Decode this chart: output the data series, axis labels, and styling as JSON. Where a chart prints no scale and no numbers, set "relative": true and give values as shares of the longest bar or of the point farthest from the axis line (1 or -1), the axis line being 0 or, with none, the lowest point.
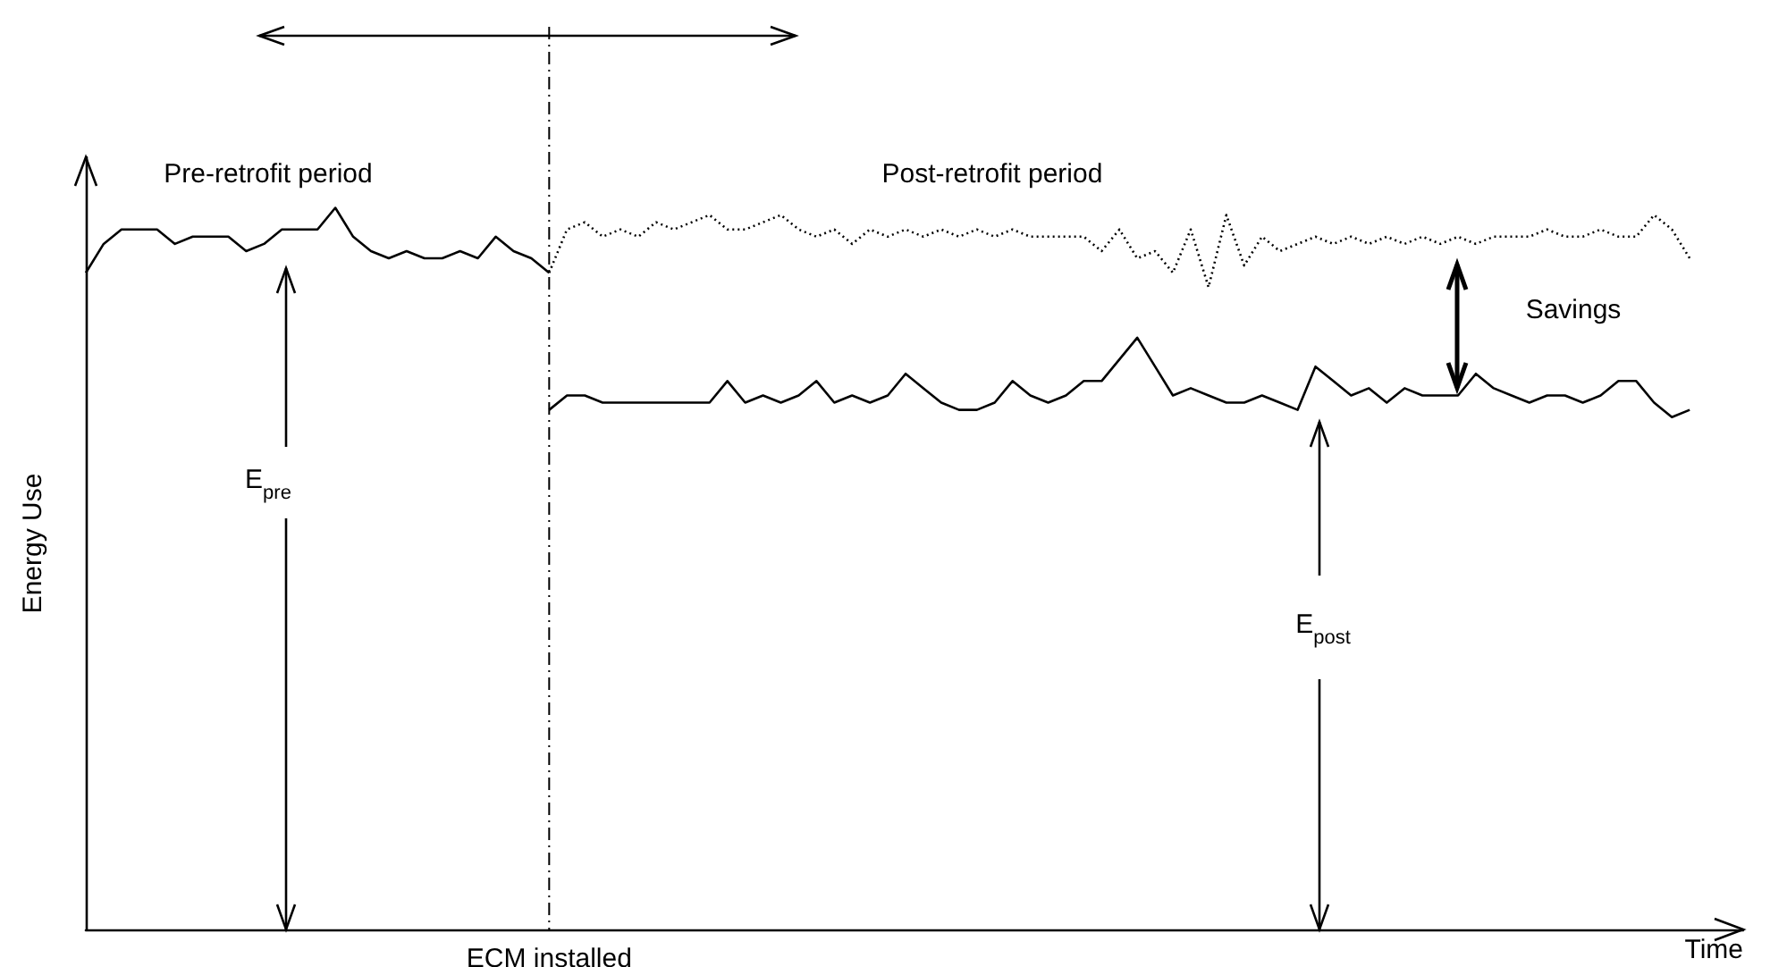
{
  "chart_data": {
    "type": "line",
    "relative": true,
    "xlabel": "Time",
    "ylabel": "Energy Use",
    "marker": "none",
    "categories": [
      null,
      null,
      null,
      null,
      null,
      null,
      null,
      null,
      null,
      null,
      null,
      null,
      null,
      null,
      null,
      null,
      null,
      null,
      null,
      null,
      null,
      null,
      null,
      null,
      null,
      null,
      null,
      null,
      null,
      null,
      null,
      null,
      null,
      null,
      null,
      null,
      null,
      null,
      null,
      null,
      null,
      null,
      null,
      null,
      null,
      null,
      null,
      null,
      null,
      null,
      null,
      null,
      null,
      null,
      null,
      null,
      null,
      null,
      null,
      null,
      null,
      null,
      null,
      null,
      null,
      null,
      null,
      null,
      null,
      null,
      null,
      null,
      null,
      null,
      null,
      null,
      null,
      null,
      null,
      null,
      null,
      null,
      null,
      null,
      null,
      null,
      null,
      null,
      null,
      null,
      null,
      null,
      null,
      null
    ],
    "series": [
      {
        "color": "#000000",
        "line_style": "solid",
        "values": [
          0.91,
          0.95,
          0.97,
          0.97,
          0.97,
          0.95,
          0.96,
          0.96,
          0.96,
          0.94,
          0.95,
          0.97,
          0.97,
          0.97,
          1.0,
          0.96,
          0.94,
          0.93,
          0.94,
          0.93,
          0.93,
          0.94,
          0.93,
          0.96,
          0.94,
          0.93,
          0.91,
          null,
          null,
          null,
          null,
          null,
          null,
          null,
          null,
          null,
          null,
          null,
          null,
          null,
          null,
          null,
          null,
          null,
          null,
          null,
          null,
          null,
          null,
          null,
          null,
          null,
          null,
          null,
          null,
          null,
          null,
          null,
          null,
          null,
          null,
          null,
          null,
          null,
          null,
          null,
          null,
          null,
          null,
          null,
          null,
          null,
          null,
          null,
          null,
          null,
          null,
          null,
          null,
          null,
          null,
          null,
          null,
          null,
          null,
          null,
          null,
          null,
          null,
          null,
          null,
          null,
          null,
          null
        ]
      },
      {
        "color": "#000000",
        "line_style": "dotted",
        "values": [
          null,
          null,
          null,
          null,
          null,
          null,
          null,
          null,
          null,
          null,
          null,
          null,
          null,
          null,
          null,
          null,
          null,
          null,
          null,
          null,
          null,
          null,
          null,
          null,
          null,
          null,
          0.91,
          0.97,
          0.98,
          0.96,
          0.97,
          0.96,
          0.98,
          0.97,
          0.98,
          0.99,
          0.97,
          0.97,
          0.98,
          0.99,
          0.97,
          0.96,
          0.97,
          0.95,
          0.97,
          0.96,
          0.97,
          0.96,
          0.97,
          0.96,
          0.97,
          0.96,
          0.97,
          0.96,
          0.96,
          0.96,
          0.96,
          0.94,
          0.97,
          0.93,
          0.94,
          0.91,
          0.97,
          0.89,
          0.99,
          0.92,
          0.96,
          0.94,
          0.95,
          0.96,
          0.95,
          0.96,
          0.95,
          0.96,
          0.95,
          0.96,
          0.95,
          0.96,
          0.95,
          0.96,
          0.96,
          0.96,
          0.97,
          0.96,
          0.96,
          0.97,
          0.96,
          0.96,
          0.99,
          0.97,
          0.93,
          null,
          null,
          null
        ]
      },
      {
        "color": "#000000",
        "line_style": "solid",
        "values": [
          null,
          null,
          null,
          null,
          null,
          null,
          null,
          null,
          null,
          null,
          null,
          null,
          null,
          null,
          null,
          null,
          null,
          null,
          null,
          null,
          null,
          null,
          null,
          null,
          null,
          null,
          0.72,
          0.74,
          0.74,
          0.73,
          0.73,
          0.73,
          0.73,
          0.73,
          0.73,
          0.73,
          0.76,
          0.73,
          0.74,
          0.73,
          0.74,
          0.76,
          0.73,
          0.74,
          0.73,
          0.74,
          0.77,
          0.75,
          0.73,
          0.72,
          0.72,
          0.73,
          0.76,
          0.74,
          0.73,
          0.74,
          0.76,
          0.76,
          0.79,
          0.82,
          0.78,
          0.74,
          0.75,
          0.74,
          0.73,
          0.73,
          0.74,
          0.73,
          0.72,
          0.78,
          0.76,
          0.74,
          0.75,
          0.73,
          0.75,
          0.74,
          0.74,
          0.74,
          0.77,
          0.75,
          0.74,
          0.73,
          0.74,
          0.74,
          0.73,
          0.74,
          0.76,
          0.76,
          0.73,
          0.71,
          0.72,
          null,
          null,
          null
        ]
      }
    ],
    "ref_lines": [
      {
        "axis": "x",
        "label": "ECM installed",
        "line_style": "dashed"
      }
    ],
    "annotations": [
      "Pre-retrofit period",
      "Post-retrofit period",
      "E$_{pre}$",
      "E$_{post}$",
      "Savings"
    ]
  }
}
